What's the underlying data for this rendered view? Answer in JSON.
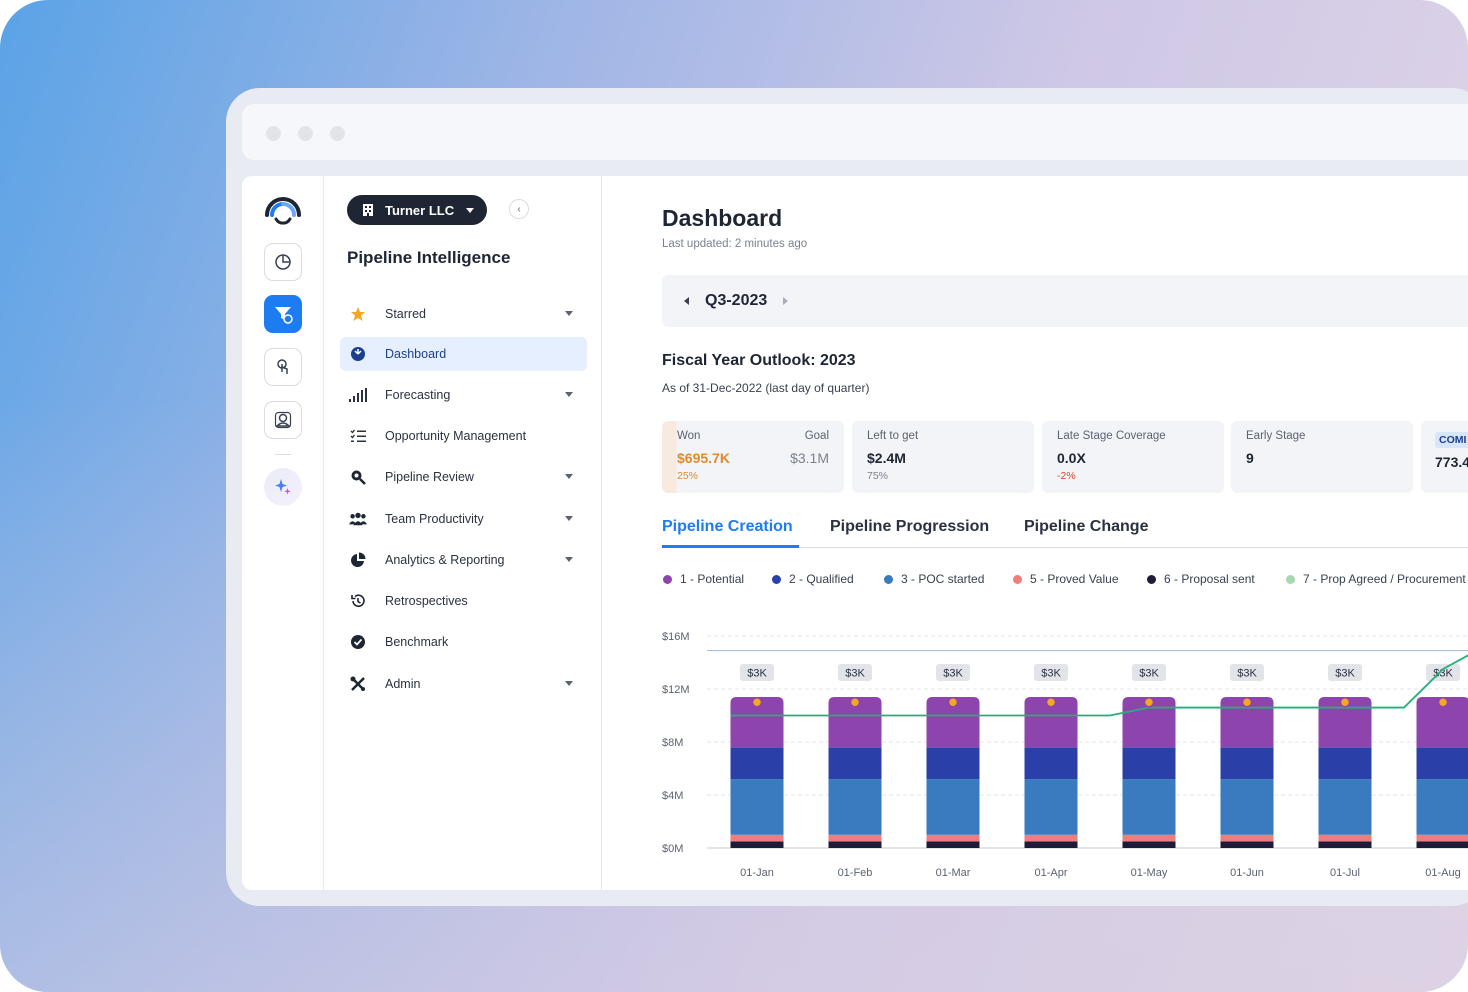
{
  "app": {
    "org": "Turner LLC",
    "title": "Pipeline Intelligence"
  },
  "nav": [
    {
      "label": "Starred",
      "icon": "star-icon",
      "caret": true,
      "active": false
    },
    {
      "label": "Dashboard",
      "icon": "dashboard-icon",
      "caret": false,
      "active": true
    },
    {
      "label": "Forecasting",
      "icon": "signal-bars-icon",
      "caret": true,
      "active": false
    },
    {
      "label": "Opportunity Management",
      "icon": "checklist-icon",
      "caret": false,
      "active": false
    },
    {
      "label": "Pipeline Review",
      "icon": "magnifier-icon",
      "caret": true,
      "active": false
    },
    {
      "label": "Team Productivity",
      "icon": "team-icon",
      "caret": true,
      "active": false
    },
    {
      "label": "Analytics & Reporting",
      "icon": "pie-icon",
      "caret": true,
      "active": false
    },
    {
      "label": "Retrospectives",
      "icon": "history-icon",
      "caret": false,
      "active": false
    },
    {
      "label": "Benchmark",
      "icon": "check-circle-icon",
      "caret": false,
      "active": false
    },
    {
      "label": "Admin",
      "icon": "tools-icon",
      "caret": true,
      "active": false
    }
  ],
  "page": {
    "title": "Dashboard",
    "updated": "Last updated: 2 minutes ago",
    "quarter": "Q3-2023",
    "fy_title": "Fiscal Year Outlook: 2023",
    "fy_sub": "As of 31-Dec-2022 (last day of quarter)"
  },
  "kpis": {
    "won": {
      "label": "Won",
      "value": "$695.7K",
      "sub": "25%",
      "goal_label": "Goal",
      "goal_value": "$3.1M"
    },
    "left": {
      "label": "Left to get",
      "value": "$2.4M",
      "sub": "75%"
    },
    "late": {
      "label": "Late Stage Coverage",
      "value": "0.0X",
      "sub": "-2%"
    },
    "early": {
      "label": "Early Stage",
      "value": "9"
    },
    "cut": {
      "badge": "COMI",
      "value": "773.4"
    }
  },
  "tabs": [
    "Pipeline Creation",
    "Pipeline Progression",
    "Pipeline Change"
  ],
  "legend": [
    {
      "label": "1 - Potential",
      "color": "#8e44ad"
    },
    {
      "label": "2 - Qualified",
      "color": "#2a3fa8"
    },
    {
      "label": "3 - POC started",
      "color": "#3a7abf"
    },
    {
      "label": "5 - Proved Value",
      "color": "#f07c7c"
    },
    {
      "label": "6 - Proposal sent",
      "color": "#1e1b3a"
    },
    {
      "label": "7 - Prop Agreed / Procurement",
      "color": "#a6d8b0"
    }
  ],
  "chart_data": {
    "type": "bar",
    "categories": [
      "01-Jan",
      "01-Feb",
      "01-Mar",
      "01-Apr",
      "01-May",
      "01-Jun",
      "01-Jul",
      "01-Aug"
    ],
    "y_ticks": [
      "$0M",
      "$4M",
      "$8M",
      "$12M",
      "$16M"
    ],
    "ylim": [
      0,
      16
    ],
    "stack_colors": [
      "#1e1b3a",
      "#f07c7c",
      "#3a7abf",
      "#2a3fa8",
      "#8e44ad"
    ],
    "stack_values_M": [
      0.5,
      0.5,
      4.2,
      2.4,
      3.8
    ],
    "bar_labels": [
      "$3K",
      "$3K",
      "$3K",
      "$3K",
      "$3K",
      "$3K",
      "$3K",
      "$3K"
    ],
    "reference_line": 14.9,
    "trend_line": [
      10,
      10,
      10,
      10,
      10.6,
      10.6,
      10.6,
      13.5
    ],
    "markers": [
      11,
      11,
      11,
      11,
      11,
      11,
      11,
      11
    ]
  }
}
